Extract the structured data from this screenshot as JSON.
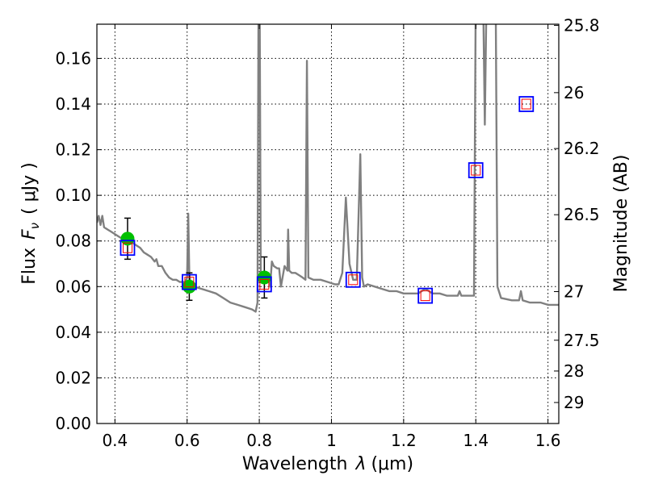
{
  "colors": {
    "spectrum": "#808080",
    "observed_point": "#00c000",
    "model_box": "#0000ff",
    "model_inner_box": "#ff0000",
    "error_bar": "#000000"
  },
  "chart_data": {
    "type": "scatter",
    "xlabel": "Wavelength",
    "xlabel_symbol": "λ",
    "xlabel_unit": "(μm)",
    "ylabel": "Flux",
    "ylabel_symbol": "F",
    "ylabel_subscript": "ν",
    "ylabel_unit": "( μJy )",
    "y2label": "Magnitude (AB)",
    "xlim": [
      0.35,
      1.63
    ],
    "ylim": [
      0,
      0.175
    ],
    "grid": true,
    "x_ticks": [
      0.4,
      0.6,
      0.8,
      1.0,
      1.2,
      1.4,
      1.6
    ],
    "x_tick_labels": [
      "0.4",
      "0.6",
      "0.8",
      "1",
      "1.2",
      "1.4",
      "1.6"
    ],
    "y_ticks": [
      0.0,
      0.02,
      0.04,
      0.06,
      0.08,
      0.1,
      0.12,
      0.14,
      0.16
    ],
    "y_tick_labels": [
      "0.00",
      "0.02",
      "0.04",
      "0.06",
      "0.08",
      "0.10",
      "0.12",
      "0.14",
      "0.16"
    ],
    "y2_ticks": [
      {
        "label": "25.8",
        "flux": 0.1745
      },
      {
        "label": "26",
        "flux": 0.145
      },
      {
        "label": "26.2",
        "flux": 0.1205
      },
      {
        "label": "26.5",
        "flux": 0.0915
      },
      {
        "label": "27",
        "flux": 0.0578
      },
      {
        "label": "27.5",
        "flux": 0.0365
      },
      {
        "label": "28",
        "flux": 0.023
      },
      {
        "label": "29",
        "flux": 0.0092
      }
    ],
    "series": [
      {
        "kind": "line",
        "points": [
          [
            0.35,
            0.088
          ],
          [
            0.355,
            0.091
          ],
          [
            0.36,
            0.087
          ],
          [
            0.365,
            0.091
          ],
          [
            0.37,
            0.086
          ],
          [
            0.38,
            0.085
          ],
          [
            0.39,
            0.084
          ],
          [
            0.4,
            0.083
          ],
          [
            0.41,
            0.082
          ],
          [
            0.42,
            0.081
          ],
          [
            0.43,
            0.081
          ],
          [
            0.44,
            0.08
          ],
          [
            0.45,
            0.079
          ],
          [
            0.46,
            0.078
          ],
          [
            0.47,
            0.077
          ],
          [
            0.48,
            0.075
          ],
          [
            0.49,
            0.074
          ],
          [
            0.5,
            0.073
          ],
          [
            0.51,
            0.071
          ],
          [
            0.515,
            0.072
          ],
          [
            0.52,
            0.069
          ],
          [
            0.53,
            0.069
          ],
          [
            0.54,
            0.066
          ],
          [
            0.55,
            0.064
          ],
          [
            0.56,
            0.063
          ],
          [
            0.57,
            0.063
          ],
          [
            0.58,
            0.062
          ],
          [
            0.59,
            0.062
          ],
          [
            0.595,
            0.062
          ],
          [
            0.6,
            0.064
          ],
          [
            0.603,
            0.092
          ],
          [
            0.606,
            0.066
          ],
          [
            0.61,
            0.061
          ],
          [
            0.62,
            0.06
          ],
          [
            0.64,
            0.059
          ],
          [
            0.66,
            0.058
          ],
          [
            0.68,
            0.057
          ],
          [
            0.7,
            0.055
          ],
          [
            0.72,
            0.053
          ],
          [
            0.74,
            0.052
          ],
          [
            0.76,
            0.051
          ],
          [
            0.78,
            0.05
          ],
          [
            0.79,
            0.049
          ],
          [
            0.795,
            0.053
          ],
          [
            0.798,
            0.19
          ],
          [
            0.801,
            0.19
          ],
          [
            0.804,
            0.066
          ],
          [
            0.81,
            0.065
          ],
          [
            0.82,
            0.064
          ],
          [
            0.825,
            0.066
          ],
          [
            0.83,
            0.06
          ],
          [
            0.835,
            0.071
          ],
          [
            0.84,
            0.069
          ],
          [
            0.85,
            0.068
          ],
          [
            0.855,
            0.068
          ],
          [
            0.86,
            0.06
          ],
          [
            0.87,
            0.069
          ],
          [
            0.878,
            0.067
          ],
          [
            0.88,
            0.085
          ],
          [
            0.883,
            0.067
          ],
          [
            0.89,
            0.066
          ],
          [
            0.9,
            0.066
          ],
          [
            0.91,
            0.065
          ],
          [
            0.92,
            0.064
          ],
          [
            0.928,
            0.063
          ],
          [
            0.932,
            0.159
          ],
          [
            0.936,
            0.064
          ],
          [
            0.95,
            0.063
          ],
          [
            0.97,
            0.063
          ],
          [
            0.99,
            0.062
          ],
          [
            1.01,
            0.061
          ],
          [
            1.02,
            0.061
          ],
          [
            1.03,
            0.066
          ],
          [
            1.04,
            0.099
          ],
          [
            1.05,
            0.07
          ],
          [
            1.06,
            0.063
          ],
          [
            1.07,
            0.063
          ],
          [
            1.08,
            0.118
          ],
          [
            1.085,
            0.064
          ],
          [
            1.09,
            0.06
          ],
          [
            1.1,
            0.061
          ],
          [
            1.12,
            0.06
          ],
          [
            1.14,
            0.059
          ],
          [
            1.16,
            0.058
          ],
          [
            1.18,
            0.058
          ],
          [
            1.2,
            0.057
          ],
          [
            1.22,
            0.057
          ],
          [
            1.24,
            0.057
          ],
          [
            1.26,
            0.059
          ],
          [
            1.28,
            0.057
          ],
          [
            1.3,
            0.057
          ],
          [
            1.32,
            0.056
          ],
          [
            1.34,
            0.056
          ],
          [
            1.35,
            0.056
          ],
          [
            1.355,
            0.058
          ],
          [
            1.36,
            0.056
          ],
          [
            1.38,
            0.056
          ],
          [
            1.395,
            0.056
          ],
          [
            1.4,
            0.19
          ],
          [
            1.403,
            0.19
          ],
          [
            1.41,
            0.19
          ],
          [
            1.42,
            0.19
          ],
          [
            1.425,
            0.131
          ],
          [
            1.43,
            0.19
          ],
          [
            1.44,
            0.19
          ],
          [
            1.45,
            0.19
          ],
          [
            1.455,
            0.19
          ],
          [
            1.46,
            0.06
          ],
          [
            1.47,
            0.055
          ],
          [
            1.5,
            0.054
          ],
          [
            1.52,
            0.054
          ],
          [
            1.525,
            0.058
          ],
          [
            1.53,
            0.054
          ],
          [
            1.55,
            0.053
          ],
          [
            1.58,
            0.053
          ],
          [
            1.6,
            0.052
          ],
          [
            1.63,
            0.052
          ]
        ]
      },
      {
        "kind": "observed",
        "points": [
          {
            "x": 0.435,
            "y": 0.081,
            "ylo": 0.072,
            "yhi": 0.09
          },
          {
            "x": 0.606,
            "y": 0.06,
            "ylo": 0.054,
            "yhi": 0.066
          },
          {
            "x": 0.814,
            "y": 0.064,
            "ylo": 0.055,
            "yhi": 0.073
          }
        ]
      },
      {
        "kind": "model",
        "points": [
          {
            "x": 0.435,
            "y": 0.077
          },
          {
            "x": 0.606,
            "y": 0.062
          },
          {
            "x": 0.814,
            "y": 0.061
          },
          {
            "x": 1.06,
            "y": 0.063
          },
          {
            "x": 1.26,
            "y": 0.056
          },
          {
            "x": 1.4,
            "y": 0.111
          },
          {
            "x": 1.54,
            "y": 0.14
          }
        ]
      }
    ]
  }
}
